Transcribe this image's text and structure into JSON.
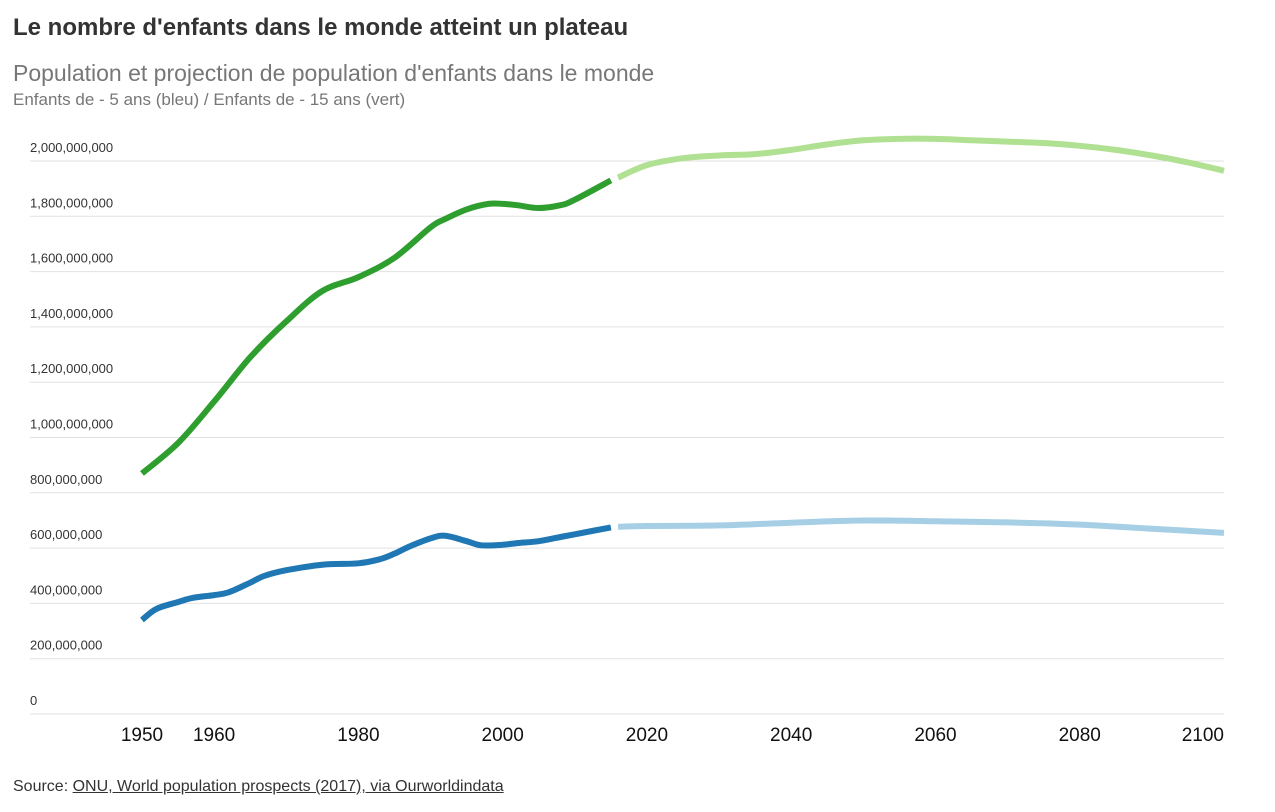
{
  "header": {
    "title": "Le nombre d'enfants dans le monde atteint un plateau",
    "subtitle": "Population et projection de population d'enfants dans le monde",
    "note": "Enfants de - 5 ans (bleu) / Enfants de - 15 ans (vert)"
  },
  "footer": {
    "source_label": "Source: ",
    "source_link": "ONU, World population prospects (2017), via Ourworldindata"
  },
  "chart_data": {
    "type": "line",
    "title": "Le nombre d'enfants dans le monde atteint un plateau",
    "subtitle": "Population et projection de population d'enfants dans le monde",
    "xlabel": "",
    "ylabel": "",
    "xlim": [
      1950,
      2100
    ],
    "ylim": [
      0,
      2000000000
    ],
    "grid": true,
    "legend": "none",
    "x_ticks": [
      1950,
      1960,
      1980,
      2000,
      2020,
      2040,
      2060,
      2080,
      2100
    ],
    "y_ticks": [
      {
        "value": 0,
        "label": "0"
      },
      {
        "value": 200000000,
        "label": "200,000,000"
      },
      {
        "value": 400000000,
        "label": "400,000,000"
      },
      {
        "value": 600000000,
        "label": "600,000,000"
      },
      {
        "value": 800000000,
        "label": "800,000,000"
      },
      {
        "value": 1000000000,
        "label": "1,000,000,000"
      },
      {
        "value": 1200000000,
        "label": "1,200,000,000"
      },
      {
        "value": 1400000000,
        "label": "1,400,000,000"
      },
      {
        "value": 1600000000,
        "label": "1,600,000,000"
      },
      {
        "value": 1800000000,
        "label": "1,800,000,000"
      },
      {
        "value": 2000000000,
        "label": "2,000,000,000"
      }
    ],
    "series": [
      {
        "color": "#2e9e2e",
        "x": [
          1950,
          1955,
          1960,
          1965,
          1970,
          1975,
          1980,
          1985,
          1990,
          1992,
          1995,
          1998,
          2000,
          2002,
          2005,
          2008,
          2010,
          2015
        ],
        "values": [
          870000000,
          980000000,
          1130000000,
          1290000000,
          1420000000,
          1530000000,
          1580000000,
          1650000000,
          1760000000,
          1790000000,
          1825000000,
          1845000000,
          1845000000,
          1840000000,
          1830000000,
          1840000000,
          1860000000,
          1930000000
        ]
      },
      {
        "color": "#b0e092",
        "x": [
          2016,
          2020,
          2025,
          2030,
          2035,
          2040,
          2045,
          2050,
          2055,
          2060,
          2065,
          2070,
          2075,
          2080,
          2085,
          2090,
          2095,
          2100
        ],
        "values": [
          1940000000,
          1985000000,
          2010000000,
          2020000000,
          2025000000,
          2040000000,
          2060000000,
          2075000000,
          2080000000,
          2080000000,
          2075000000,
          2070000000,
          2065000000,
          2055000000,
          2040000000,
          2020000000,
          1995000000,
          1965000000
        ]
      },
      {
        "color": "#1f77b4",
        "x": [
          1950,
          1952,
          1955,
          1957,
          1960,
          1962,
          1965,
          1967,
          1970,
          1975,
          1980,
          1983,
          1985,
          1987,
          1990,
          1992,
          1995,
          1997,
          2000,
          2002,
          2005,
          2008,
          2010,
          2015
        ],
        "values": [
          340000000,
          380000000,
          405000000,
          420000000,
          430000000,
          440000000,
          475000000,
          500000000,
          520000000,
          540000000,
          545000000,
          560000000,
          580000000,
          605000000,
          635000000,
          645000000,
          625000000,
          610000000,
          612000000,
          618000000,
          625000000,
          640000000,
          650000000,
          675000000
        ]
      },
      {
        "color": "#a6cfe6",
        "x": [
          2016,
          2020,
          2030,
          2040,
          2050,
          2060,
          2070,
          2080,
          2090,
          2100
        ],
        "values": [
          677000000,
          680000000,
          682000000,
          692000000,
          700000000,
          697000000,
          693000000,
          685000000,
          670000000,
          655000000
        ]
      }
    ]
  }
}
